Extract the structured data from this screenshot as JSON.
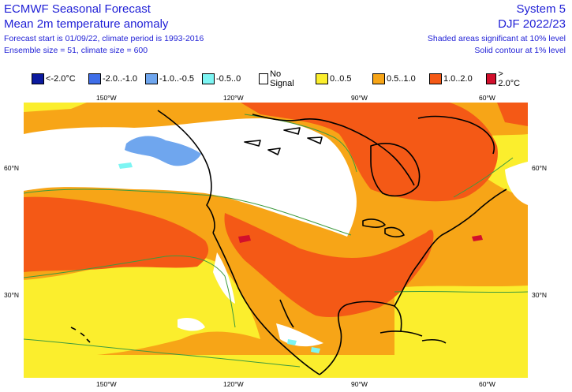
{
  "header": {
    "title": "ECMWF Seasonal Forecast",
    "subtitle": "Mean 2m temperature anomaly",
    "forecast_info": "Forecast start is 01/09/22, climate period is 1993-2016",
    "ensemble_info": "Ensemble size = 51, climate size = 600",
    "system": "System 5",
    "season": "DJF 2022/23",
    "significance_shaded": "Shaded areas significant at 10% level",
    "significance_contour": "Solid contour at 1% level"
  },
  "legend": [
    {
      "label": "<-2.0°C",
      "color": "#0b1a9e"
    },
    {
      "label": "-2.0..-1.0",
      "color": "#3f6ee8"
    },
    {
      "label": "-1.0..-0.5",
      "color": "#6fa6ee"
    },
    {
      "label": "-0.5..0",
      "color": "#7df5f3"
    },
    {
      "label": "No Signal",
      "color": "#ffffff"
    },
    {
      "label": "0..0.5",
      "color": "#fbee2d"
    },
    {
      "label": "0.5..1.0",
      "color": "#f7a517"
    },
    {
      "label": "1.0..2.0",
      "color": "#f45916"
    },
    {
      "label": "> 2.0°C",
      "color": "#d20f2c"
    }
  ],
  "axes": {
    "lon_top": [
      "150°W",
      "120°W",
      "90°W",
      "60°W"
    ],
    "lon_bottom": [
      "150°W",
      "120°W",
      "90°W",
      "60°W"
    ],
    "lat_left": [
      "60°N",
      "30°N"
    ],
    "lat_right": [
      "60°N",
      "30°N"
    ]
  },
  "colors": {
    "header_text": "#1f1fd6",
    "contour": "#3e9a3e",
    "coastline": "#000000"
  }
}
